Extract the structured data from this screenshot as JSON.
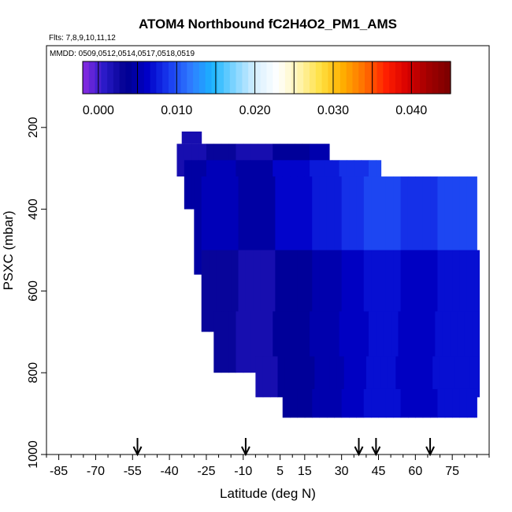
{
  "chart_data": {
    "type": "heatmap",
    "title": "ATOM4 Northbound fC2H4O2_PM1_AMS",
    "flights_note": "Flts: 7,8,9,10,11,12",
    "dates_note": "MMDD: 0509,0512,0514,0517,0518,0519",
    "xlabel": "Latitude (deg N)",
    "ylabel": "PSXC (mbar)",
    "xlim": [
      -90,
      90
    ],
    "ylim": [
      1000,
      0
    ],
    "x_ticks": [
      "-85",
      "-70",
      "-55",
      "-40",
      "-25",
      "-10",
      "5",
      "15",
      "30",
      "45",
      "60",
      "75"
    ],
    "y_ticks": [
      "200",
      "400",
      "600",
      "800",
      "1000"
    ],
    "colorbar": {
      "min": -0.002,
      "max": 0.045,
      "ticks": [
        "0.000",
        "0.010",
        "0.020",
        "0.030",
        "0.040"
      ],
      "colors": [
        "#8a2be2",
        "#2a1ac8",
        "#00008f",
        "#0000c8",
        "#1a3cf0",
        "#2f7cff",
        "#1ab4ff",
        "#7fd4ff",
        "#d8f0ff",
        "#ffffff",
        "#fff4b0",
        "#ffe040",
        "#ffb000",
        "#ff7000",
        "#ff2000",
        "#d80000",
        "#a00000",
        "#7a0000"
      ]
    },
    "flight_arrows_lat": [
      -53,
      -9,
      37,
      44,
      66
    ],
    "profile_envelope": [
      {
        "lat_min": -35,
        "lat_max": -27,
        "p_min": 210,
        "p_max": 240
      },
      {
        "lat_min": -37,
        "lat_max": 25,
        "p_min": 240,
        "p_max": 320
      },
      {
        "lat_min": -34,
        "lat_max": 46,
        "p_min": 280,
        "p_max": 400
      },
      {
        "lat_min": -30,
        "lat_max": 85,
        "p_min": 320,
        "p_max": 560
      },
      {
        "lat_min": -27,
        "lat_max": 86,
        "p_min": 500,
        "p_max": 700
      },
      {
        "lat_min": -22,
        "lat_max": 86,
        "p_min": 650,
        "p_max": 800
      },
      {
        "lat_min": -5,
        "lat_max": 86,
        "p_min": 760,
        "p_max": 860
      },
      {
        "lat_min": 6,
        "lat_max": 85,
        "p_min": 840,
        "p_max": 910
      }
    ],
    "column_values": [
      {
        "lat": -33,
        "value": 0.002
      },
      {
        "lat": -20,
        "value": 0.003
      },
      {
        "lat": -5,
        "value": 0.002
      },
      {
        "lat": 10,
        "value": 0.004
      },
      {
        "lat": 25,
        "value": 0.005
      },
      {
        "lat": 35,
        "value": 0.006
      },
      {
        "lat": 45,
        "value": 0.007
      },
      {
        "lat": 60,
        "value": 0.006
      },
      {
        "lat": 75,
        "value": 0.007
      }
    ]
  }
}
